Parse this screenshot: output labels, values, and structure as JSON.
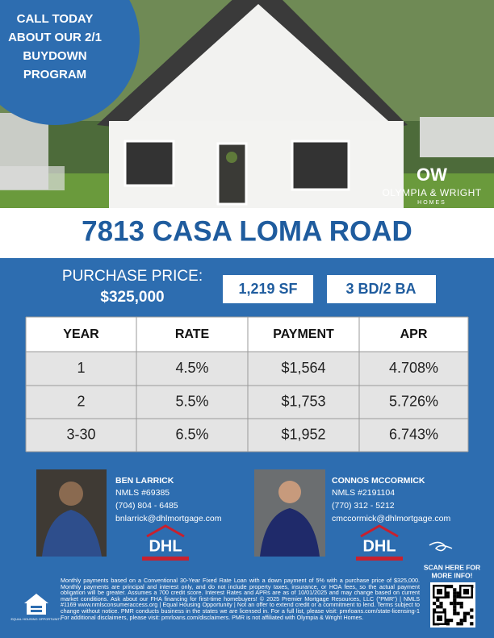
{
  "banner": {
    "lines": [
      "CALL TODAY",
      "ABOUT OUR 2/1",
      "BUYDOWN",
      "PROGRAM"
    ]
  },
  "builder_logo": {
    "mark": "OW",
    "name": "OLYMPIA & WRIGHT",
    "sub": "HOMES"
  },
  "address": "7813 CASA LOMA ROAD",
  "price": {
    "label": "PURCHASE PRICE:",
    "value": "$325,000"
  },
  "features": [
    "1,219 SF",
    "3 BD/2 BA"
  ],
  "table": {
    "header": [
      "YEAR",
      "RATE",
      "PAYMENT",
      "APR"
    ],
    "rows": [
      [
        "1",
        "4.5%",
        "$1,564",
        "4.708%"
      ],
      [
        "2",
        "5.5%",
        "$1,753",
        "5.726%"
      ],
      [
        "3-30",
        "6.5%",
        "$1,952",
        "6.743%"
      ]
    ]
  },
  "agents": [
    {
      "name": "BEN LARRICK",
      "nmls": "NMLS #69385",
      "phone": "(704) 804 - 6485",
      "email": "bnlarrick@dhlmortgage.com",
      "logo": "DHL"
    },
    {
      "name": "CONNOS MCCORMICK",
      "nmls": "NMLS #2191104",
      "phone": "(770) 312 - 5212",
      "email": "cmccormick@dhlmortgage.com",
      "logo": "DHL"
    }
  ],
  "qr": {
    "lines": [
      "SCAN HERE FOR",
      "MORE INFO!"
    ]
  },
  "equal_housing": "EQUAL HOUSING OPPORTUNITY",
  "disclaimer": "Monthly payments based on a Conventional 30-Year Fixed Rate Loan with a down payment of 5% with a purchase price of $325,000. Monthly payments are principal and interest only, and do not include property taxes, insurance, or HOA fees, so the actual payment obligation will be greater. Assumes a 700 credit score. Interest Rates and APRs are as of 10/01/2025 and may change based on current market conditions. Ask about our FHA financing for first-time homebuyers! © 2025 Premier Mortgage Resources, LLC (\"PMR\") | NMLS #1169 www.nmlsconsumeraccess.org | Equal Housing Opportunity | Not an offer to extend credit or a commitment to lend. Terms subject to change without notice. PMR conducts business in the states we are licensed in. For a full list, please visit: pmrloans.com/state-licensing-1 For additional disclaimers, please visit: pmrloans.com/disclaimers. PMR is not affiliated with Olympia & Wright Homes."
}
